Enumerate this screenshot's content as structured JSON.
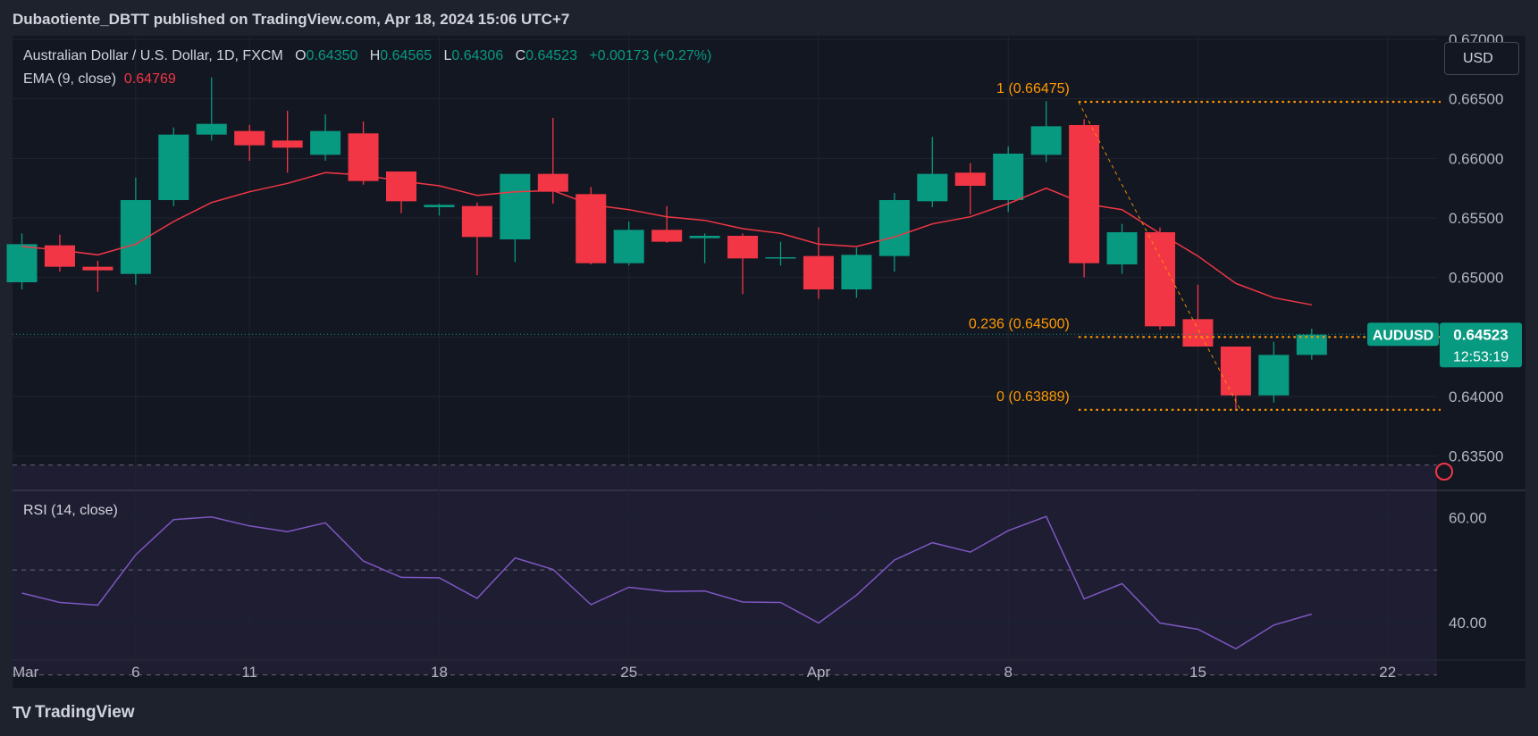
{
  "header": {
    "published": "Dubaotiente_DBTT published on TradingView.com, Apr 18, 2024 15:06 UTC+7"
  },
  "legend": {
    "symbol": "Australian Dollar / U.S. Dollar, 1D, FXCM",
    "o_label": "O",
    "o_value": "0.64350",
    "h_label": "H",
    "h_value": "0.64565",
    "l_label": "L",
    "l_value": "0.64306",
    "c_label": "C",
    "c_value": "0.64523",
    "change": "+0.00173 (+0.27%)",
    "ema_label": "EMA (9, close)",
    "ema_value": "0.64769",
    "rsi_label": "RSI (14, close)"
  },
  "currency_button": "USD",
  "brand": {
    "logo": "TV",
    "name": "TradingView"
  },
  "colors": {
    "background": "#131722",
    "up": "#089981",
    "down": "#f23645",
    "ema": "#f23645",
    "rsi": "#7e57c2",
    "fib": "#ff9800"
  },
  "chart_data": {
    "type": "candlestick",
    "price_axis": {
      "ylim": [
        0.6322,
        0.6703
      ],
      "ticks": [
        "0.63500",
        "0.64000",
        "0.64500",
        "0.65000",
        "0.65500",
        "0.66000",
        "0.66500",
        "0.67000"
      ]
    },
    "time_axis": {
      "ticks": [
        "Mar",
        "6",
        "11",
        "18",
        "25",
        "Apr",
        "8",
        "15",
        "22"
      ]
    },
    "candles": [
      {
        "o": 0.6496,
        "h": 0.6537,
        "l": 0.649,
        "c": 0.6528
      },
      {
        "o": 0.6527,
        "h": 0.6536,
        "l": 0.6505,
        "c": 0.6509
      },
      {
        "o": 0.6509,
        "h": 0.6514,
        "l": 0.6488,
        "c": 0.6506
      },
      {
        "o": 0.6503,
        "h": 0.6584,
        "l": 0.6494,
        "c": 0.6565
      },
      {
        "o": 0.6565,
        "h": 0.6626,
        "l": 0.656,
        "c": 0.662
      },
      {
        "o": 0.662,
        "h": 0.6668,
        "l": 0.6615,
        "c": 0.6629
      },
      {
        "o": 0.6623,
        "h": 0.6628,
        "l": 0.6598,
        "c": 0.6611
      },
      {
        "o": 0.6615,
        "h": 0.664,
        "l": 0.6588,
        "c": 0.6609
      },
      {
        "o": 0.6603,
        "h": 0.6637,
        "l": 0.6598,
        "c": 0.6623
      },
      {
        "o": 0.6621,
        "h": 0.6631,
        "l": 0.6578,
        "c": 0.6581
      },
      {
        "o": 0.6589,
        "h": 0.6589,
        "l": 0.6554,
        "c": 0.6564
      },
      {
        "o": 0.6559,
        "h": 0.6562,
        "l": 0.6552,
        "c": 0.6561
      },
      {
        "o": 0.656,
        "h": 0.6563,
        "l": 0.6502,
        "c": 0.6534
      },
      {
        "o": 0.6532,
        "h": 0.6586,
        "l": 0.6513,
        "c": 0.6587
      },
      {
        "o": 0.6587,
        "h": 0.6634,
        "l": 0.6562,
        "c": 0.6572
      },
      {
        "o": 0.657,
        "h": 0.6576,
        "l": 0.6511,
        "c": 0.6512
      },
      {
        "o": 0.6512,
        "h": 0.6547,
        "l": 0.651,
        "c": 0.654
      },
      {
        "o": 0.654,
        "h": 0.656,
        "l": 0.6529,
        "c": 0.653
      },
      {
        "o": 0.6533,
        "h": 0.6537,
        "l": 0.6512,
        "c": 0.6535
      },
      {
        "o": 0.6535,
        "h": 0.6537,
        "l": 0.6486,
        "c": 0.6516
      },
      {
        "o": 0.6516,
        "h": 0.653,
        "l": 0.651,
        "c": 0.6517
      },
      {
        "o": 0.6518,
        "h": 0.6542,
        "l": 0.6482,
        "c": 0.649
      },
      {
        "o": 0.649,
        "h": 0.6525,
        "l": 0.6483,
        "c": 0.6519
      },
      {
        "o": 0.6518,
        "h": 0.6571,
        "l": 0.6505,
        "c": 0.6565
      },
      {
        "o": 0.6564,
        "h": 0.6618,
        "l": 0.6559,
        "c": 0.6587
      },
      {
        "o": 0.6588,
        "h": 0.6596,
        "l": 0.6553,
        "c": 0.6577
      },
      {
        "o": 0.6565,
        "h": 0.661,
        "l": 0.6555,
        "c": 0.6604
      },
      {
        "o": 0.6603,
        "h": 0.6648,
        "l": 0.6597,
        "c": 0.6627
      },
      {
        "o": 0.6628,
        "h": 0.6633,
        "l": 0.65,
        "c": 0.6512
      },
      {
        "o": 0.6511,
        "h": 0.6545,
        "l": 0.6503,
        "c": 0.6538
      },
      {
        "o": 0.6538,
        "h": 0.6542,
        "l": 0.6456,
        "c": 0.6459
      },
      {
        "o": 0.6465,
        "h": 0.6494,
        "l": 0.6442,
        "c": 0.6442
      },
      {
        "o": 0.6442,
        "h": 0.6442,
        "l": 0.6389,
        "c": 0.6401
      },
      {
        "o": 0.6401,
        "h": 0.6446,
        "l": 0.6395,
        "c": 0.6435
      },
      {
        "o": 0.6435,
        "h": 0.6457,
        "l": 0.6431,
        "c": 0.6452
      }
    ],
    "ema": [
      0.6526,
      0.6523,
      0.6519,
      0.6528,
      0.6547,
      0.6563,
      0.6572,
      0.6579,
      0.6588,
      0.6586,
      0.6581,
      0.6577,
      0.6569,
      0.6572,
      0.6573,
      0.6561,
      0.6557,
      0.6551,
      0.6548,
      0.6541,
      0.6537,
      0.6528,
      0.6526,
      0.6534,
      0.6545,
      0.6551,
      0.6562,
      0.6575,
      0.6562,
      0.6557,
      0.6537,
      0.6518,
      0.6495,
      0.6483,
      0.6477
    ],
    "rsi": {
      "ylim": [
        33,
        65
      ],
      "ticks": [
        "40.00",
        "60.00"
      ],
      "bands": [
        30,
        50,
        70
      ],
      "values": [
        45.6,
        43.8,
        43.3,
        52.9,
        59.6,
        60.1,
        58.4,
        57.3,
        59.0,
        51.7,
        48.6,
        48.5,
        44.6,
        52.3,
        50.1,
        43.4,
        46.7,
        45.9,
        46.0,
        43.9,
        43.8,
        39.9,
        45.2,
        51.9,
        55.2,
        53.4,
        57.5,
        60.2,
        44.5,
        47.4,
        39.9,
        38.7,
        35.0,
        39.5,
        41.6
      ]
    },
    "fibonacci": [
      {
        "label": "1 (0.66475)",
        "price": 0.66475
      },
      {
        "label": "0.236 (0.64500)",
        "price": 0.645
      },
      {
        "label": "0 (0.63889)",
        "price": 0.63889
      }
    ],
    "price_tag": {
      "symbol": "AUDUSD",
      "price": "0.64523",
      "countdown": "12:53:19"
    }
  }
}
